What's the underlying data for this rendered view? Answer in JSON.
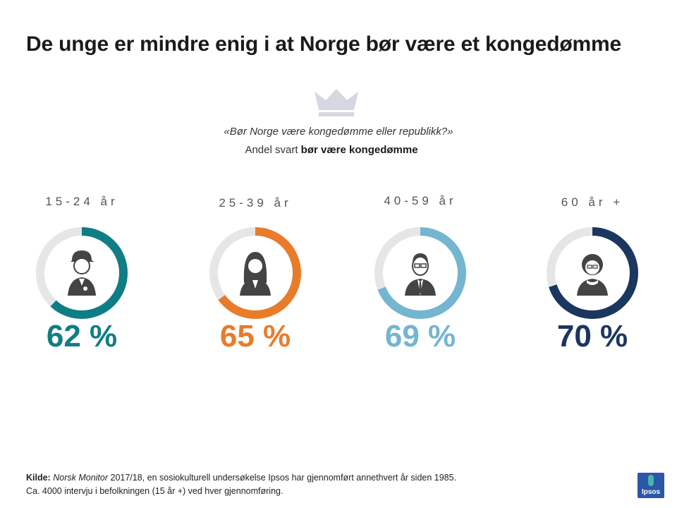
{
  "title": "De unge er mindre enig i at Norge bør være et kongedømme",
  "question": "«Bør Norge være kongedømme eller republikk?»",
  "subtitle_prefix": "Andel svart ",
  "subtitle_bold": "bør være kongedømme",
  "chart_data": {
    "type": "donut",
    "title": "De unge er mindre enig i at Norge bør være et kongedømme",
    "categories": [
      "15-24 år",
      "25-39 år",
      "40-59 år",
      "60 år +"
    ],
    "values": [
      62,
      65,
      69,
      70
    ],
    "unit": "%",
    "value_labels": [
      "62 %",
      "65 %",
      "69 %",
      "70 %"
    ],
    "colors": [
      "#0f7d85",
      "#e87c2b",
      "#74b5d0",
      "#1b365f"
    ],
    "track_color": "#e6e6e6",
    "icons": [
      "young-man-cap-icon",
      "woman-long-hair-icon",
      "man-glasses-tie-icon",
      "elderly-woman-icon"
    ]
  },
  "footer": {
    "source_label": "Kilde:",
    "source_name": "Norsk Monitor",
    "source_rest": " 2017/18,  en sosiokulturell undersøkelse Ipsos har gjennomført annethvert år siden 1985.",
    "line2": "Ca. 4000  intervju i befolkningen (15 år +) ved hver gjennomføring."
  },
  "logo_text": "Ipsos"
}
